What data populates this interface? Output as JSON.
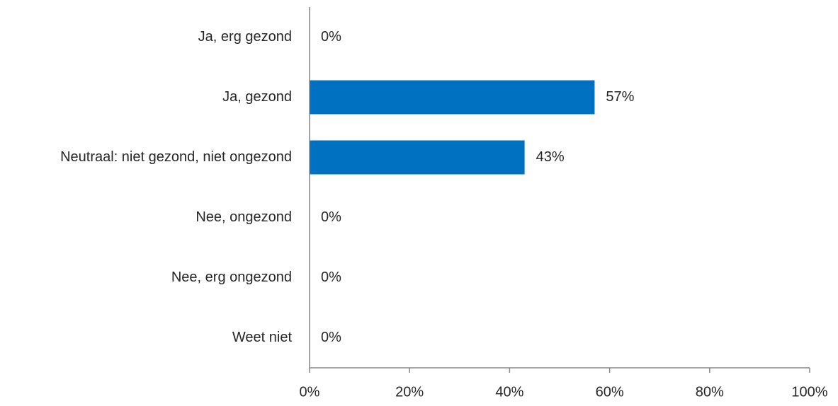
{
  "chart_data": {
    "type": "bar",
    "orientation": "horizontal",
    "categories": [
      "Ja, erg gezond",
      "Ja, gezond",
      "Neutraal: niet gezond, niet ongezond",
      "Nee, ongezond",
      "Nee, erg ongezond",
      "Weet niet"
    ],
    "values": [
      0,
      57,
      43,
      0,
      0,
      0
    ],
    "value_labels": [
      "0%",
      "57%",
      "43%",
      "0%",
      "0%",
      "0%"
    ],
    "xlim": [
      0,
      100
    ],
    "xticks": [
      0,
      20,
      40,
      60,
      80,
      100
    ],
    "xtick_labels": [
      "0%",
      "20%",
      "40%",
      "60%",
      "80%",
      "100%"
    ],
    "title": "",
    "xlabel": "",
    "ylabel": "",
    "grid": false,
    "legend": "none",
    "bar_color": "#0070C0",
    "axis_color": "#868686"
  }
}
